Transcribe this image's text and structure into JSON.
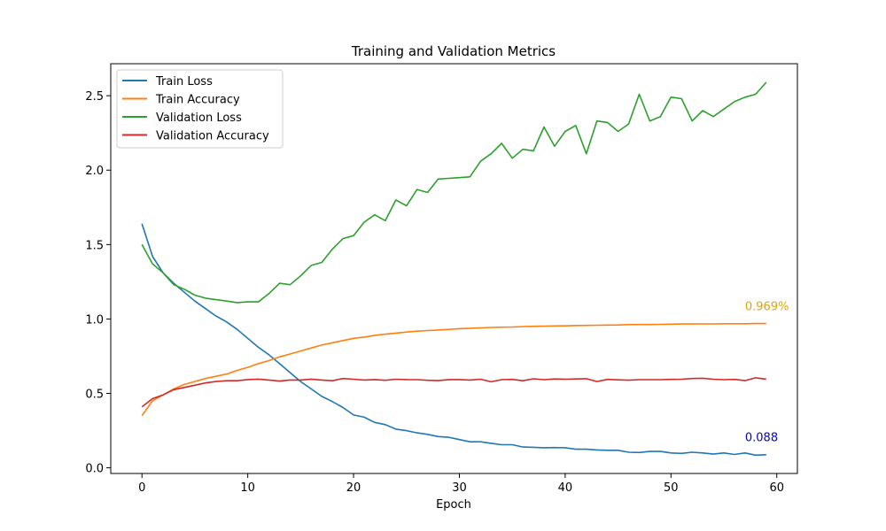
{
  "chart_data": {
    "type": "line",
    "title": "Training and Validation Metrics",
    "xlabel": "Epoch",
    "ylabel": "",
    "xlim": [
      -2.95,
      61.95
    ],
    "ylim": [
      -0.038,
      2.715
    ],
    "xticks": [
      0,
      10,
      20,
      30,
      40,
      50,
      60
    ],
    "yticks": [
      0.0,
      0.5,
      1.0,
      1.5,
      2.0,
      2.5
    ],
    "grid": false,
    "legend": "top-left",
    "x": [
      0,
      1,
      2,
      3,
      4,
      5,
      6,
      7,
      8,
      9,
      10,
      11,
      12,
      13,
      14,
      15,
      16,
      17,
      18,
      19,
      20,
      21,
      22,
      23,
      24,
      25,
      26,
      27,
      28,
      29,
      30,
      31,
      32,
      33,
      34,
      35,
      36,
      37,
      38,
      39,
      40,
      41,
      42,
      43,
      44,
      45,
      46,
      47,
      48,
      49,
      50,
      51,
      52,
      53,
      54,
      55,
      56,
      57,
      58,
      59
    ],
    "series": [
      {
        "name": "Train Loss",
        "color": "#1f77b4",
        "values": [
          1.64,
          1.42,
          1.31,
          1.24,
          1.18,
          1.12,
          1.07,
          1.02,
          0.98,
          0.93,
          0.87,
          0.81,
          0.76,
          0.7,
          0.64,
          0.58,
          0.53,
          0.48,
          0.445,
          0.405,
          0.355,
          0.34,
          0.305,
          0.29,
          0.26,
          0.25,
          0.235,
          0.225,
          0.21,
          0.205,
          0.19,
          0.175,
          0.175,
          0.165,
          0.155,
          0.155,
          0.14,
          0.138,
          0.135,
          0.136,
          0.135,
          0.125,
          0.125,
          0.12,
          0.118,
          0.118,
          0.105,
          0.103,
          0.11,
          0.11,
          0.1,
          0.097,
          0.105,
          0.1,
          0.092,
          0.1,
          0.09,
          0.1,
          0.085,
          0.088
        ]
      },
      {
        "name": "Train Accuracy",
        "color": "#ff7f0e",
        "values": [
          0.35,
          0.45,
          0.49,
          0.53,
          0.56,
          0.58,
          0.6,
          0.615,
          0.63,
          0.655,
          0.675,
          0.7,
          0.72,
          0.745,
          0.765,
          0.785,
          0.805,
          0.825,
          0.84,
          0.855,
          0.87,
          0.878,
          0.89,
          0.898,
          0.905,
          0.912,
          0.918,
          0.922,
          0.926,
          0.93,
          0.935,
          0.938,
          0.94,
          0.943,
          0.945,
          0.946,
          0.949,
          0.951,
          0.952,
          0.953,
          0.954,
          0.956,
          0.957,
          0.958,
          0.959,
          0.96,
          0.962,
          0.963,
          0.963,
          0.964,
          0.965,
          0.966,
          0.966,
          0.967,
          0.967,
          0.968,
          0.968,
          0.968,
          0.969,
          0.969
        ]
      },
      {
        "name": "Validation Loss",
        "color": "#2ca02c",
        "values": [
          1.5,
          1.37,
          1.31,
          1.23,
          1.2,
          1.16,
          1.14,
          1.13,
          1.12,
          1.11,
          1.115,
          1.115,
          1.17,
          1.24,
          1.23,
          1.29,
          1.36,
          1.38,
          1.47,
          1.54,
          1.56,
          1.65,
          1.7,
          1.66,
          1.8,
          1.76,
          1.87,
          1.85,
          1.94,
          1.945,
          1.95,
          1.955,
          2.06,
          2.11,
          2.18,
          2.08,
          2.14,
          2.13,
          2.29,
          2.16,
          2.26,
          2.3,
          2.11,
          2.33,
          2.32,
          2.26,
          2.31,
          2.51,
          2.33,
          2.36,
          2.49,
          2.48,
          2.33,
          2.4,
          2.36,
          2.41,
          2.46,
          2.49,
          2.51,
          2.59
        ]
      },
      {
        "name": "Validation Accuracy",
        "color": "#d62728",
        "values": [
          0.41,
          0.465,
          0.49,
          0.525,
          0.54,
          0.555,
          0.57,
          0.58,
          0.585,
          0.585,
          0.593,
          0.596,
          0.59,
          0.583,
          0.59,
          0.59,
          0.596,
          0.59,
          0.585,
          0.6,
          0.595,
          0.59,
          0.593,
          0.588,
          0.595,
          0.593,
          0.592,
          0.588,
          0.586,
          0.593,
          0.593,
          0.59,
          0.595,
          0.578,
          0.592,
          0.594,
          0.585,
          0.598,
          0.592,
          0.597,
          0.595,
          0.597,
          0.599,
          0.58,
          0.594,
          0.591,
          0.589,
          0.592,
          0.592,
          0.592,
          0.594,
          0.595,
          0.6,
          0.602,
          0.595,
          0.592,
          0.594,
          0.586,
          0.605,
          0.596
        ]
      }
    ],
    "annotations": [
      {
        "text": "0.969%",
        "x": 57,
        "y": 1.06,
        "color": "#e6a400"
      },
      {
        "text": "0.088",
        "x": 57,
        "y": 0.18,
        "color": "#0000cc"
      }
    ]
  }
}
